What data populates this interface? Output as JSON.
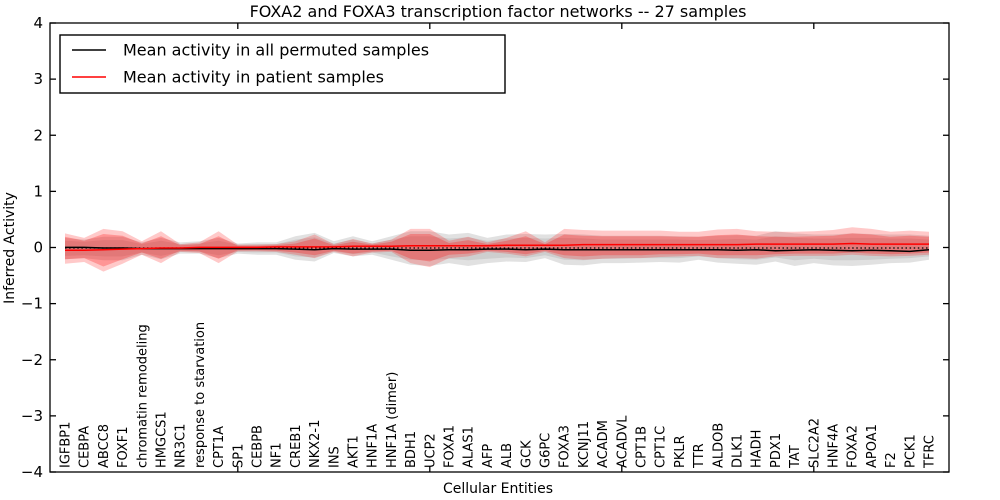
{
  "title": "FOXA2 and FOXA3 transcription factor networks -- 27 samples",
  "axis": {
    "xlabel": "Cellular Entities",
    "ylabel": "Inferred Activity"
  },
  "legend": {
    "items": [
      {
        "label": "Mean activity in all permuted samples",
        "color": "#000000"
      },
      {
        "label": "Mean activity in patient samples",
        "color": "#ff0000"
      }
    ]
  },
  "chart_data": {
    "type": "area",
    "title": "FOXA2 and FOXA3 transcription factor networks -- 27 samples",
    "xlabel": "Cellular Entities",
    "ylabel": "Inferred Activity",
    "ylim": [
      -4,
      4
    ],
    "ytick_labels": [
      "4",
      "3",
      "2",
      "1",
      "0",
      "−1",
      "−2",
      "−3",
      "−4"
    ],
    "grid": false,
    "legend_position": "upper left",
    "categories": [
      "IGFBP1",
      "CEBPA",
      "ABCC8",
      "FOXF1",
      "chromatin remodeling",
      "HMGCS1",
      "NR3C1",
      "response to starvation",
      "CPT1A",
      "SP1",
      "CEBPB",
      "NF1",
      "CREB1",
      "NKX2-1",
      "INS",
      "AKT1",
      "HNF1A",
      "HNF1A (dimer)",
      "BDH1",
      "UCP2",
      "FOXA1",
      "ALAS1",
      "AFP",
      "ALB",
      "GCK",
      "G6PC",
      "FOXA3",
      "KCNJ11",
      "ACADM",
      "ACADVL",
      "CPT1B",
      "CPT1C",
      "PKLR",
      "TTR",
      "ALDOB",
      "DLK1",
      "HADH",
      "PDX1",
      "TAT",
      "SLC2A2",
      "HNF4A",
      "FOXA2",
      "APOA1",
      "F2",
      "PCK1",
      "TFRC"
    ],
    "top_tick_categories": [
      "SP1",
      "UCP2",
      "ACADVL",
      "SLC2A2"
    ],
    "top_tick_indices": [
      9,
      19,
      29,
      39
    ],
    "series": [
      {
        "name": "permuted-range-outer",
        "kind": "band",
        "color": "#808080",
        "opacity": 0.24,
        "upper": [
          0.18,
          0.15,
          0.2,
          0.2,
          0.1,
          0.18,
          0.1,
          0.12,
          0.18,
          0.08,
          0.1,
          0.1,
          0.21,
          0.27,
          0.12,
          0.21,
          0.12,
          0.21,
          0.3,
          0.3,
          0.24,
          0.27,
          0.18,
          0.24,
          0.25,
          0.24,
          0.25,
          0.24,
          0.22,
          0.22,
          0.22,
          0.22,
          0.21,
          0.2,
          0.22,
          0.23,
          0.22,
          0.3,
          0.26,
          0.24,
          0.24,
          0.26,
          0.25,
          0.24,
          0.24,
          0.22
        ],
        "lower": [
          -0.2,
          -0.18,
          -0.22,
          -0.22,
          -0.12,
          -0.2,
          -0.1,
          -0.1,
          -0.18,
          -0.1,
          -0.12,
          -0.12,
          -0.21,
          -0.24,
          -0.09,
          -0.15,
          -0.12,
          -0.21,
          -0.3,
          -0.32,
          -0.27,
          -0.32,
          -0.27,
          -0.24,
          -0.25,
          -0.18,
          -0.3,
          -0.31,
          -0.27,
          -0.27,
          -0.26,
          -0.25,
          -0.26,
          -0.21,
          -0.26,
          -0.28,
          -0.3,
          -0.24,
          -0.32,
          -0.27,
          -0.31,
          -0.32,
          -0.3,
          -0.27,
          -0.26,
          -0.21
        ]
      },
      {
        "name": "permuted-range-inner",
        "kind": "band",
        "color": "#808080",
        "opacity": 0.2,
        "upper": [
          0.13,
          0.11,
          0.14,
          0.14,
          0.07,
          0.13,
          0.07,
          0.08,
          0.13,
          0.06,
          0.07,
          0.07,
          0.15,
          0.19,
          0.08,
          0.15,
          0.08,
          0.15,
          0.21,
          0.21,
          0.17,
          0.19,
          0.13,
          0.17,
          0.18,
          0.17,
          0.18,
          0.17,
          0.15,
          0.15,
          0.15,
          0.15,
          0.15,
          0.14,
          0.15,
          0.16,
          0.15,
          0.21,
          0.18,
          0.17,
          0.17,
          0.18,
          0.18,
          0.17,
          0.17,
          0.15
        ],
        "lower": [
          -0.14,
          -0.13,
          -0.15,
          -0.15,
          -0.08,
          -0.14,
          -0.07,
          -0.07,
          -0.13,
          -0.07,
          -0.08,
          -0.08,
          -0.15,
          -0.17,
          -0.06,
          -0.11,
          -0.08,
          -0.15,
          -0.21,
          -0.22,
          -0.19,
          -0.22,
          -0.19,
          -0.17,
          -0.18,
          -0.13,
          -0.21,
          -0.22,
          -0.19,
          -0.19,
          -0.18,
          -0.18,
          -0.18,
          -0.15,
          -0.18,
          -0.2,
          -0.21,
          -0.17,
          -0.22,
          -0.19,
          -0.22,
          -0.22,
          -0.21,
          -0.19,
          -0.18,
          -0.15
        ]
      },
      {
        "name": "patient-range-outer",
        "kind": "band",
        "color": "#ff0000",
        "opacity": 0.21,
        "upper": [
          0.26,
          0.18,
          0.34,
          0.3,
          0.12,
          0.3,
          0.07,
          0.1,
          0.3,
          0.06,
          0.06,
          0.07,
          0.12,
          0.24,
          0.07,
          0.16,
          0.08,
          0.15,
          0.34,
          0.34,
          0.13,
          0.2,
          0.1,
          0.18,
          0.3,
          0.1,
          0.34,
          0.32,
          0.31,
          0.31,
          0.31,
          0.31,
          0.29,
          0.29,
          0.33,
          0.34,
          0.3,
          0.29,
          0.29,
          0.3,
          0.32,
          0.37,
          0.34,
          0.29,
          0.31,
          0.29
        ],
        "lower": [
          -0.28,
          -0.25,
          -0.42,
          -0.28,
          -0.12,
          -0.27,
          -0.07,
          -0.09,
          -0.27,
          -0.06,
          -0.06,
          -0.07,
          -0.12,
          -0.18,
          -0.07,
          -0.15,
          -0.08,
          -0.07,
          -0.27,
          -0.34,
          -0.18,
          -0.15,
          -0.07,
          -0.1,
          -0.15,
          -0.07,
          -0.18,
          -0.21,
          -0.19,
          -0.18,
          -0.18,
          -0.16,
          -0.15,
          -0.14,
          -0.18,
          -0.18,
          -0.19,
          -0.15,
          -0.14,
          -0.14,
          -0.14,
          -0.12,
          -0.14,
          -0.15,
          -0.14,
          -0.12
        ]
      },
      {
        "name": "patient-range-inner",
        "kind": "band",
        "color": "#ff0000",
        "opacity": 0.26,
        "upper": [
          0.2,
          0.13,
          0.25,
          0.22,
          0.08,
          0.21,
          0.05,
          0.07,
          0.21,
          0.04,
          0.04,
          0.05,
          0.08,
          0.17,
          0.05,
          0.11,
          0.06,
          0.11,
          0.25,
          0.25,
          0.09,
          0.14,
          0.07,
          0.13,
          0.21,
          0.07,
          0.24,
          0.22,
          0.21,
          0.21,
          0.21,
          0.21,
          0.2,
          0.2,
          0.23,
          0.24,
          0.21,
          0.2,
          0.2,
          0.21,
          0.22,
          0.26,
          0.24,
          0.2,
          0.22,
          0.2
        ],
        "lower": [
          -0.2,
          -0.18,
          -0.33,
          -0.2,
          -0.08,
          -0.19,
          -0.05,
          -0.06,
          -0.19,
          -0.04,
          -0.04,
          -0.05,
          -0.08,
          -0.13,
          -0.05,
          -0.1,
          -0.06,
          -0.05,
          -0.19,
          -0.24,
          -0.12,
          -0.1,
          -0.05,
          -0.07,
          -0.11,
          -0.05,
          -0.13,
          -0.15,
          -0.13,
          -0.13,
          -0.13,
          -0.11,
          -0.11,
          -0.1,
          -0.13,
          -0.13,
          -0.13,
          -0.11,
          -0.1,
          -0.1,
          -0.1,
          -0.08,
          -0.1,
          -0.11,
          -0.1,
          -0.08
        ]
      },
      {
        "name": "zero-line",
        "kind": "hline",
        "y": 0,
        "color": "#000000",
        "style": "dotted"
      },
      {
        "name": "Mean activity in all permuted samples",
        "kind": "line",
        "color": "#000000",
        "values": [
          0.01,
          0.01,
          0.0,
          0.0,
          -0.01,
          -0.01,
          -0.01,
          -0.01,
          -0.01,
          -0.01,
          -0.01,
          -0.01,
          -0.02,
          -0.03,
          -0.01,
          -0.02,
          -0.02,
          -0.02,
          -0.04,
          -0.04,
          -0.03,
          -0.03,
          -0.02,
          -0.02,
          -0.03,
          -0.02,
          -0.03,
          -0.03,
          -0.03,
          -0.03,
          -0.03,
          -0.03,
          -0.03,
          -0.03,
          -0.03,
          -0.04,
          -0.03,
          -0.05,
          -0.04,
          -0.03,
          -0.04,
          -0.05,
          -0.04,
          -0.05,
          -0.06,
          -0.03
        ]
      },
      {
        "name": "Mean activity in patient samples",
        "kind": "line",
        "color": "#ff0000",
        "values": [
          -0.04,
          -0.04,
          -0.03,
          -0.02,
          -0.01,
          0.0,
          0.0,
          0.01,
          0.01,
          0.01,
          0.01,
          0.02,
          0.02,
          0.02,
          0.02,
          0.03,
          0.03,
          0.03,
          0.04,
          0.04,
          0.04,
          0.04,
          0.04,
          0.05,
          0.05,
          0.05,
          0.05,
          0.06,
          0.06,
          0.06,
          0.06,
          0.06,
          0.06,
          0.06,
          0.06,
          0.06,
          0.07,
          0.07,
          0.07,
          0.07,
          0.07,
          0.08,
          0.07,
          0.07,
          0.07,
          0.07
        ]
      }
    ]
  }
}
